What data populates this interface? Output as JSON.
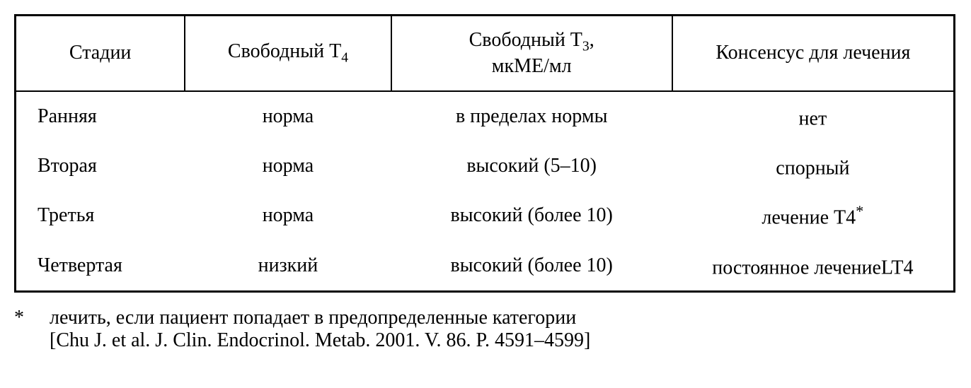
{
  "table": {
    "columns": [
      {
        "label": "Стадии",
        "width": "18%",
        "align": "center"
      },
      {
        "label_prefix": "Свободный Т",
        "label_sub": "4",
        "label_suffix": "",
        "width": "22%",
        "align": "center"
      },
      {
        "label_prefix": "Свободный Т",
        "label_sub": "3",
        "label_suffix": ",",
        "label_line2": "мкМЕ/мл",
        "width": "30%",
        "align": "center"
      },
      {
        "label": "Консенсус для лечения",
        "width": "30%",
        "align": "center"
      }
    ],
    "rows": [
      {
        "c1": "Ранняя",
        "c2": "норма",
        "c3": "в пределах нормы",
        "c4": "нет",
        "c4_sup": ""
      },
      {
        "c1": "Вторая",
        "c2": "норма",
        "c3": "высокий (5–10)",
        "c4": "спорный",
        "c4_sup": ""
      },
      {
        "c1": "Третья",
        "c2": "норма",
        "c3": "высокий (более 10)",
        "c4": "лечение Т4",
        "c4_sup": "*"
      },
      {
        "c1": "Четвертая",
        "c2": "низкий",
        "c3": "высокий (более 10)",
        "c4": "постоянное лечениеLT4",
        "c4_sup": ""
      }
    ]
  },
  "footnote": {
    "marker": "*",
    "line1": "лечить, если пациент попадает в предопределенные категории",
    "line2": "[Chu J. et al. J. Clin. Endocrinol. Metab. 2001. V. 86. P. 4591–4599]"
  },
  "style": {
    "background_color": "#ffffff",
    "border_color": "#000000",
    "text_color": "#000000",
    "font_family": "Times New Roman, Georgia, serif",
    "header_fontsize": 28,
    "cell_fontsize": 28,
    "footnote_fontsize": 28,
    "outer_border_width": 3,
    "inner_border_width": 2
  }
}
